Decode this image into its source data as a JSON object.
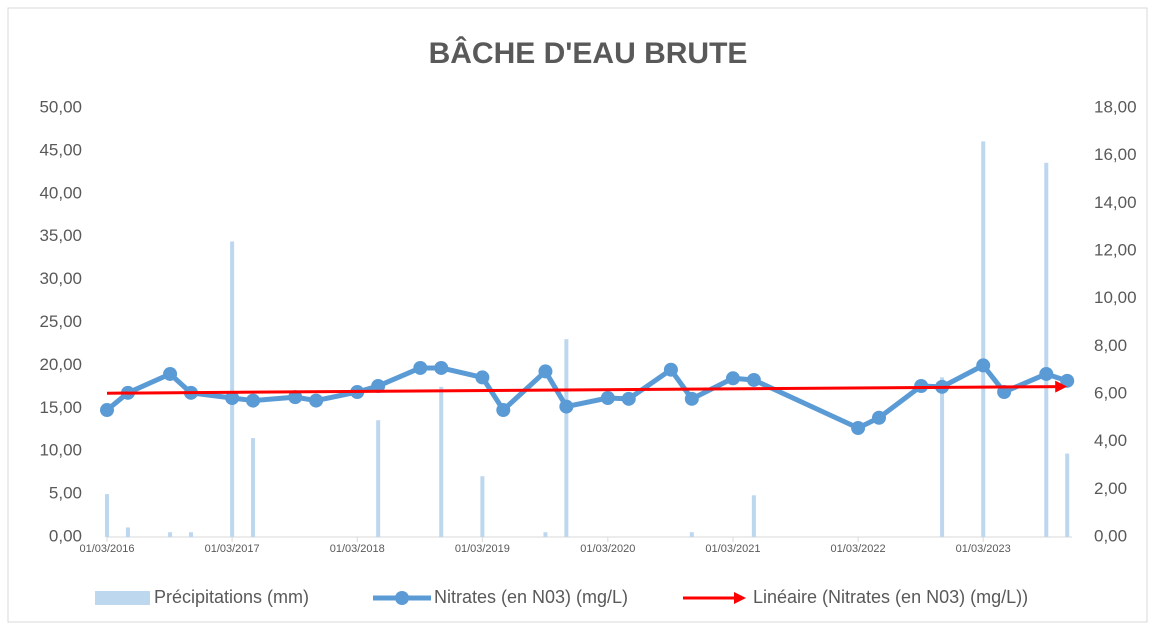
{
  "chart_data": {
    "type": "bar-line",
    "title": "BÂCHE D'EAU BRUTE",
    "x": [
      "01/03/2016",
      "01/05/2016",
      "01/09/2016",
      "01/11/2016",
      "01/03/2017",
      "01/05/2017",
      "01/09/2017",
      "01/11/2017",
      "01/03/2018",
      "01/05/2018",
      "01/09/2018",
      "01/11/2018",
      "01/03/2019",
      "01/05/2019",
      "01/09/2019",
      "01/11/2019",
      "01/03/2020",
      "01/05/2020",
      "01/09/2020",
      "01/11/2020",
      "01/03/2021",
      "01/05/2021",
      "01/03/2022",
      "01/05/2022",
      "01/09/2022",
      "01/11/2022",
      "01/03/2023",
      "01/05/2023",
      "01/09/2023",
      "01/11/2023"
    ],
    "xlim": [
      "01/03/2016",
      "15/11/2023"
    ],
    "xticks": [
      "01/03/2016",
      "01/03/2017",
      "01/03/2018",
      "01/03/2019",
      "01/03/2020",
      "01/03/2021",
      "01/03/2022",
      "01/03/2023"
    ],
    "series": [
      {
        "name": "Précipitations (mm)",
        "color": "#bdd7ee",
        "type": "bar",
        "axis": "y2",
        "values": [
          1.8,
          0.4,
          0.2,
          0.2,
          12.4,
          4.15,
          0,
          0,
          0,
          4.9,
          0,
          6.3,
          2.55,
          0,
          0.2,
          8.3,
          0,
          0,
          0,
          0.2,
          0,
          1.75,
          0,
          0,
          0,
          6.7,
          16.6,
          0,
          15.7,
          3.5
        ]
      },
      {
        "name": "Nitrates (en N03) (mg/L)",
        "color": "#5b9bd5",
        "type": "line",
        "values": [
          14.8,
          16.8,
          19.0,
          16.8,
          16.2,
          15.9,
          16.3,
          15.9,
          16.9,
          17.6,
          19.7,
          19.7,
          18.6,
          14.8,
          19.3,
          15.2,
          16.2,
          16.1,
          19.5,
          16.1,
          18.5,
          18.3,
          12.7,
          13.9,
          17.6,
          17.5,
          20.0,
          16.9,
          19.0,
          18.2
        ]
      }
    ],
    "trendline": {
      "name": "Linéaire (Nitrates (en N03) (mg/L))",
      "color": "#ff0000"
    },
    "ylim": [
      0,
      50
    ],
    "yticks": [
      {
        "value": 0,
        "label": "0,00"
      },
      {
        "value": 5,
        "label": "5,00"
      },
      {
        "value": 10,
        "label": "10,00"
      },
      {
        "value": 15,
        "label": "15,00"
      },
      {
        "value": 20,
        "label": "20,00"
      },
      {
        "value": 25,
        "label": "25,00"
      },
      {
        "value": 30,
        "label": "30,00"
      },
      {
        "value": 35,
        "label": "35,00"
      },
      {
        "value": 40,
        "label": "40,00"
      },
      {
        "value": 45,
        "label": "45,00"
      },
      {
        "value": 50,
        "label": "50,00"
      }
    ],
    "y2lim": [
      0,
      18
    ],
    "y2ticks": [
      {
        "value": 0,
        "label": "0,00"
      },
      {
        "value": 2,
        "label": "2,00"
      },
      {
        "value": 4,
        "label": "4,00"
      },
      {
        "value": 6,
        "label": "6,00"
      },
      {
        "value": 8,
        "label": "8,00"
      },
      {
        "value": 10,
        "label": "10,00"
      },
      {
        "value": 12,
        "label": "12,00"
      },
      {
        "value": 14,
        "label": "14,00"
      },
      {
        "value": 16,
        "label": "16,00"
      },
      {
        "value": 18,
        "label": "18,00"
      }
    ],
    "grid": false,
    "legend": "bottom"
  }
}
